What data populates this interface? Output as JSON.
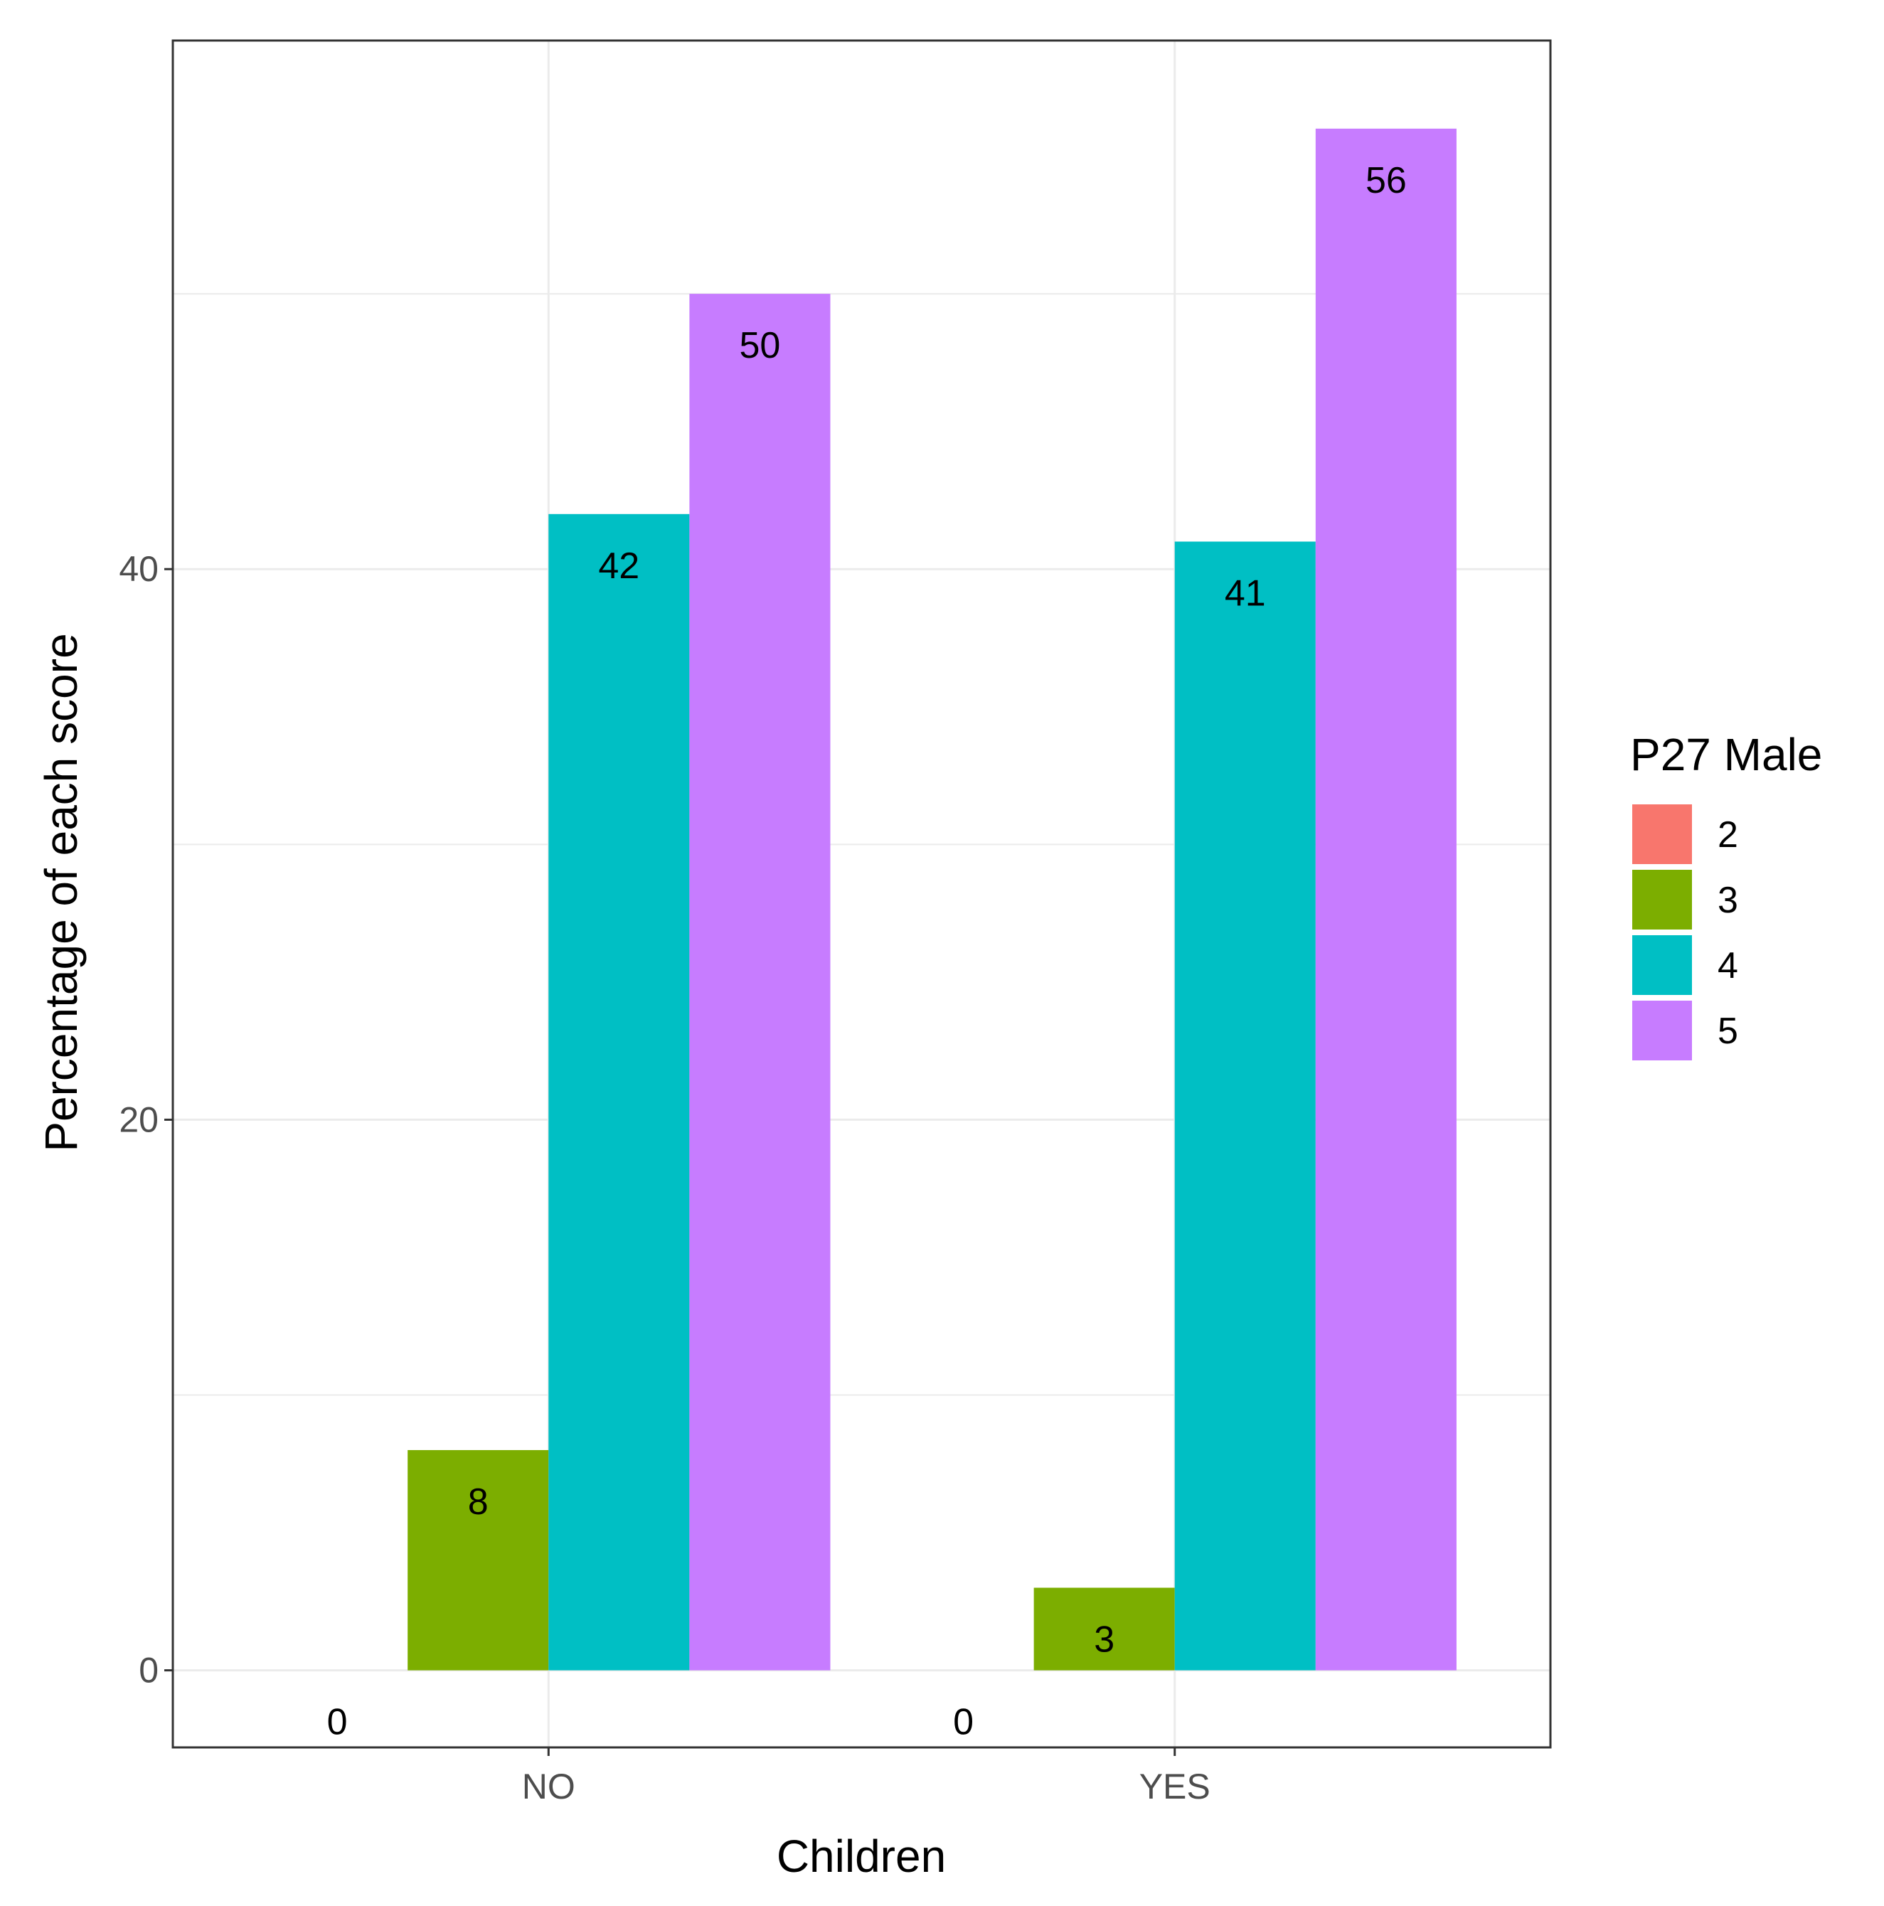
{
  "chart_data": {
    "type": "bar",
    "title": "",
    "xlabel": "Children",
    "ylabel": "Percentage of each score",
    "categories": [
      "NO",
      "YES"
    ],
    "ylim": [
      -2.8,
      59.2
    ],
    "yticks": [
      0,
      20,
      40
    ],
    "grid": true,
    "legend": {
      "title": "P27 Male",
      "position": "right"
    },
    "series": [
      {
        "name": "2",
        "color": "#F8766D",
        "values": [
          0,
          0
        ],
        "labels": [
          "0",
          "0"
        ]
      },
      {
        "name": "3",
        "color": "#7CAE00",
        "values": [
          8,
          3
        ],
        "labels": [
          "8",
          "3"
        ]
      },
      {
        "name": "4",
        "color": "#00BFC4",
        "values": [
          42,
          41
        ],
        "labels": [
          "42",
          "41"
        ]
      },
      {
        "name": "5",
        "color": "#C77CFF",
        "values": [
          50,
          56
        ],
        "labels": [
          "50",
          "56"
        ]
      }
    ]
  }
}
